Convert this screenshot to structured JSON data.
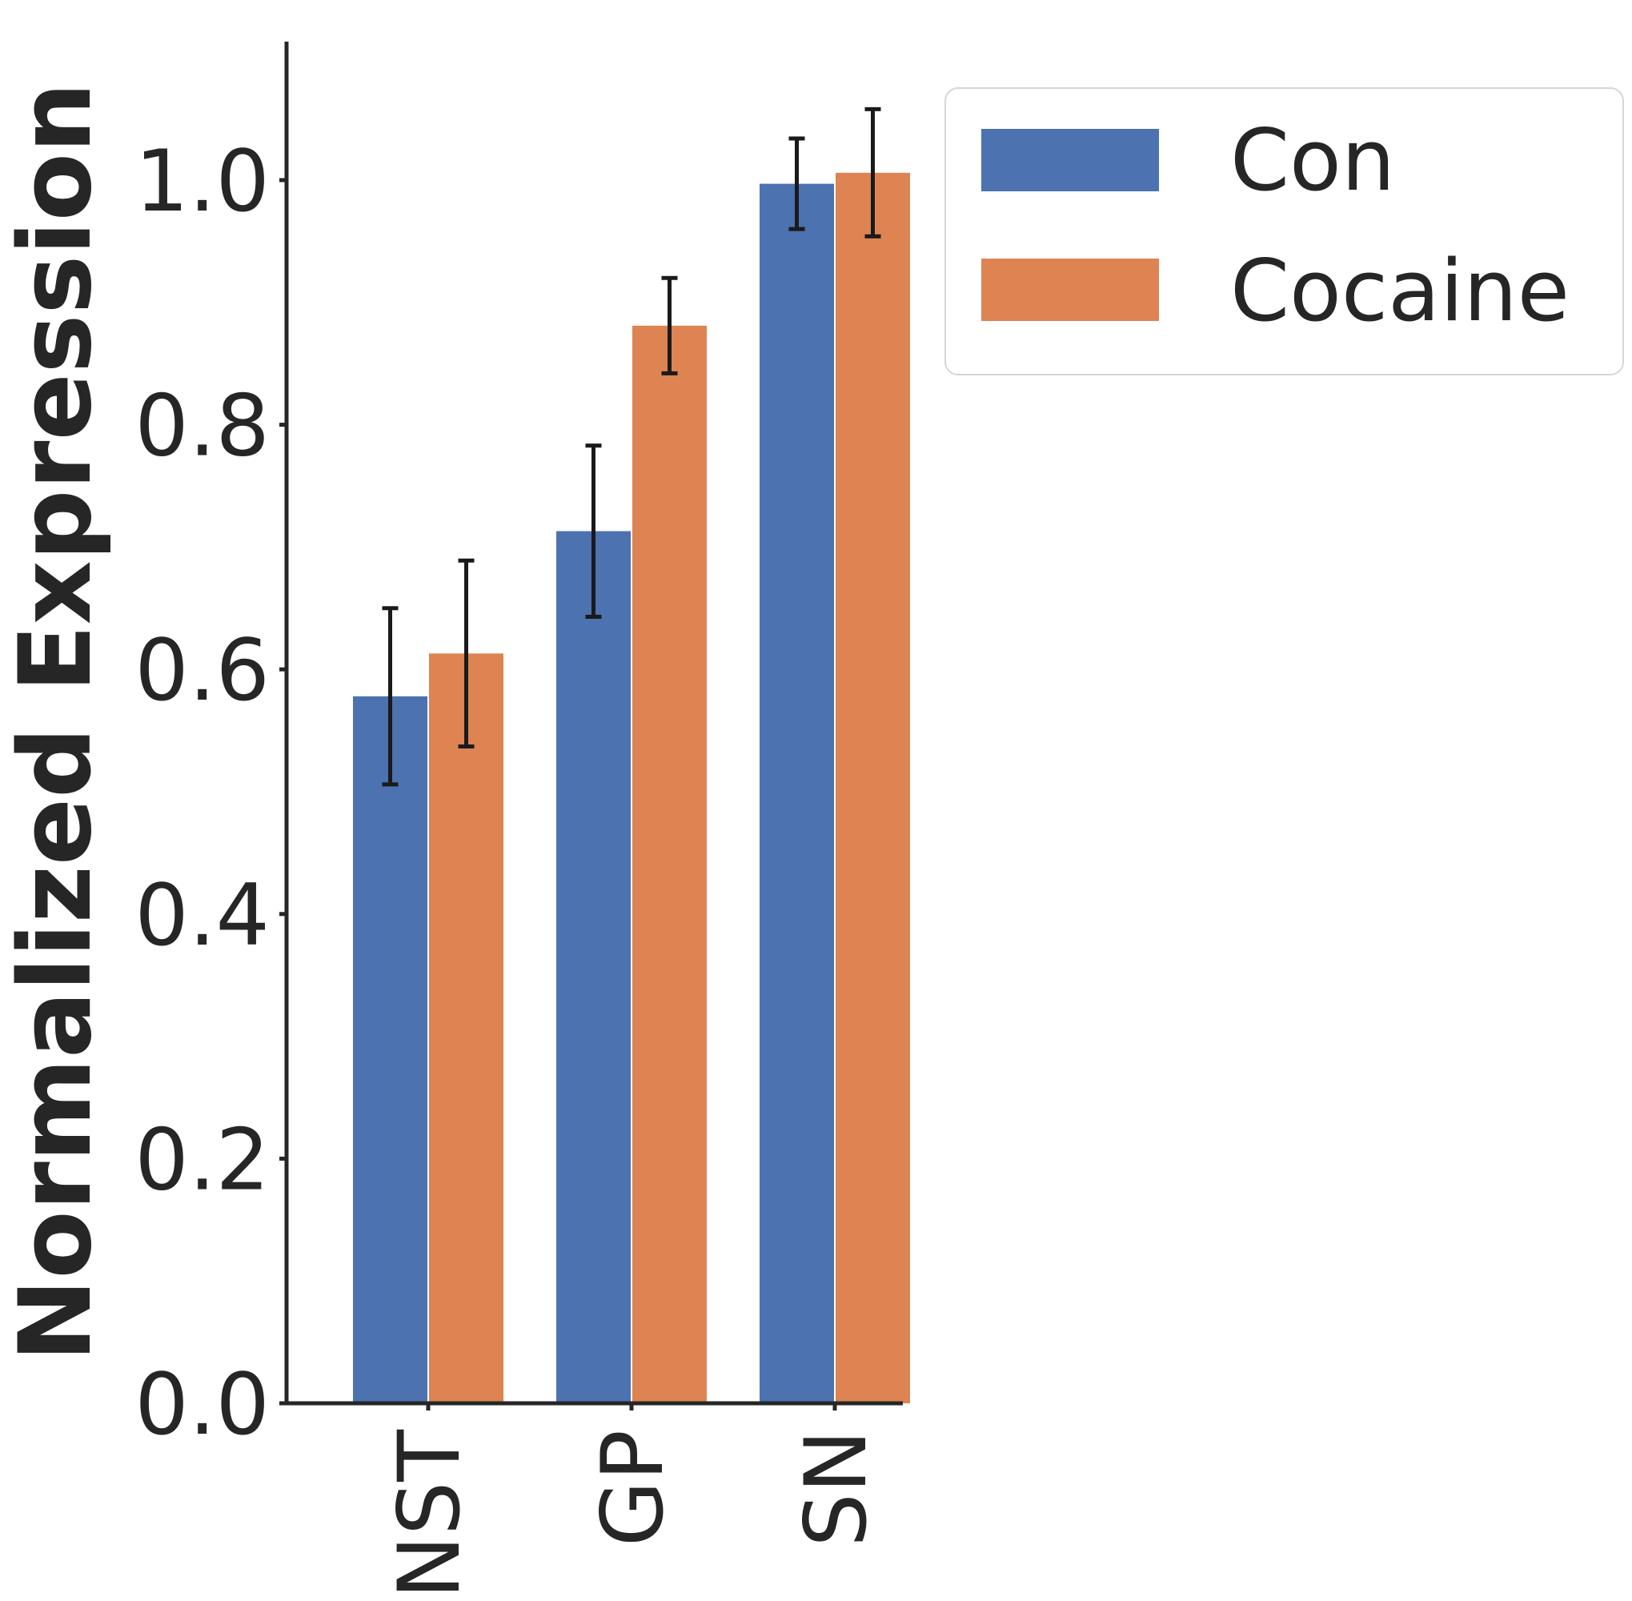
{
  "chart_data": {
    "type": "bar",
    "categories": [
      "NST",
      "GP",
      "SN"
    ],
    "ylabel": "Normalized Expression",
    "xlabel": "",
    "ylim": [
      0,
      1.11
    ],
    "yticks": [
      "0.0",
      "0.2",
      "0.4",
      "0.6",
      "0.8",
      "1.0"
    ],
    "grid": false,
    "legend_position": "top-right, outside plot",
    "series": [
      {
        "name": "Con",
        "color": "#4c72b0",
        "values": [
          0.578,
          0.713,
          0.997
        ],
        "errors": [
          0.072,
          0.07,
          0.037
        ]
      },
      {
        "name": "Cocaine",
        "color": "#dd8452",
        "values": [
          0.613,
          0.881,
          1.006
        ],
        "errors": [
          0.076,
          0.039,
          0.052
        ]
      }
    ]
  }
}
